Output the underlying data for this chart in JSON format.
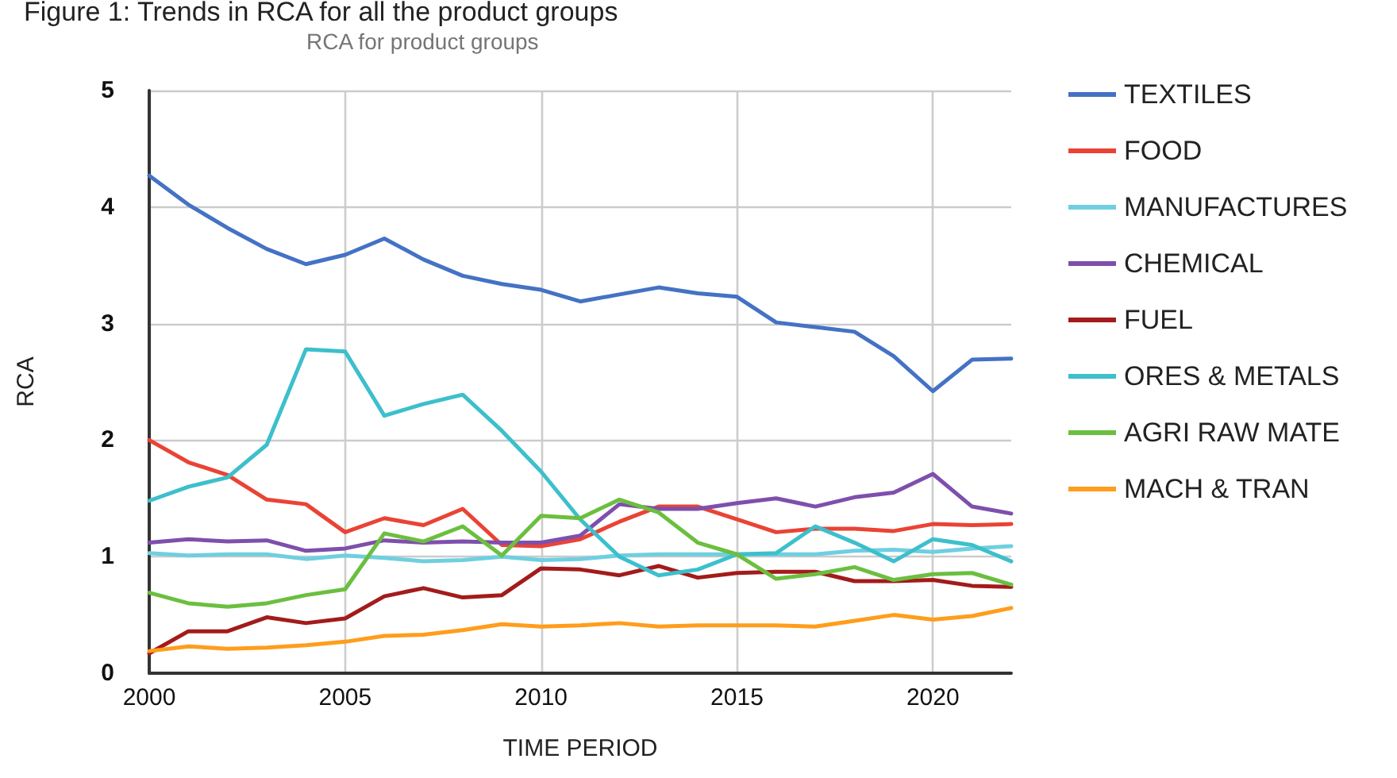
{
  "chart_data": {
    "type": "line",
    "title": "Figure 1: Trends in RCA for all the product groups",
    "subtitle": "RCA for product groups",
    "xlabel": "TIME PERIOD",
    "ylabel": "RCA",
    "x": [
      2000,
      2001,
      2002,
      2003,
      2004,
      2005,
      2006,
      2007,
      2008,
      2009,
      2010,
      2011,
      2012,
      2013,
      2014,
      2015,
      2016,
      2017,
      2018,
      2019,
      2020,
      2021,
      2022
    ],
    "series": [
      {
        "name": "TEXTILES",
        "color": "#4472c4",
        "values": [
          4.27,
          4.02,
          3.82,
          3.64,
          3.51,
          3.59,
          3.73,
          3.55,
          3.41,
          3.34,
          3.29,
          3.19,
          3.25,
          3.31,
          3.26,
          3.23,
          3.01,
          2.97,
          2.93,
          2.72,
          2.42,
          2.69,
          2.7
        ]
      },
      {
        "name": "FOOD",
        "color": "#ea4335",
        "values": [
          2.0,
          1.81,
          1.7,
          1.49,
          1.45,
          1.21,
          1.33,
          1.27,
          1.41,
          1.1,
          1.09,
          1.15,
          1.3,
          1.43,
          1.43,
          1.32,
          1.21,
          1.24,
          1.24,
          1.22,
          1.28,
          1.27,
          1.28
        ]
      },
      {
        "name": "MANUFACTURES",
        "color": "#6fcfe0",
        "values": [
          1.03,
          1.01,
          1.02,
          1.02,
          0.98,
          1.01,
          0.99,
          0.96,
          0.97,
          1.0,
          0.97,
          0.98,
          1.01,
          1.02,
          1.02,
          1.02,
          1.02,
          1.02,
          1.05,
          1.06,
          1.04,
          1.07,
          1.09
        ]
      },
      {
        "name": "CHEMICAL",
        "color": "#7e4fad",
        "values": [
          1.12,
          1.15,
          1.13,
          1.14,
          1.05,
          1.07,
          1.14,
          1.12,
          1.13,
          1.12,
          1.12,
          1.18,
          1.45,
          1.41,
          1.41,
          1.46,
          1.5,
          1.43,
          1.51,
          1.55,
          1.71,
          1.43,
          1.37
        ]
      },
      {
        "name": "FUEL",
        "color": "#a31b1b",
        "values": [
          0.17,
          0.36,
          0.36,
          0.48,
          0.43,
          0.47,
          0.66,
          0.73,
          0.65,
          0.67,
          0.9,
          0.89,
          0.84,
          0.92,
          0.82,
          0.86,
          0.87,
          0.87,
          0.79,
          0.79,
          0.8,
          0.75,
          0.74
        ]
      },
      {
        "name": "ORES & METALS",
        "color": "#3dbfcc",
        "values": [
          1.48,
          1.6,
          1.68,
          1.96,
          2.78,
          2.76,
          2.21,
          2.31,
          2.39,
          2.08,
          1.73,
          1.32,
          1.0,
          0.84,
          0.89,
          1.02,
          1.03,
          1.26,
          1.12,
          0.96,
          1.15,
          1.1,
          0.96
        ]
      },
      {
        "name": "AGRI RAW MATE",
        "color": "#6bbf3f",
        "values": [
          0.69,
          0.6,
          0.57,
          0.6,
          0.67,
          0.72,
          1.2,
          1.13,
          1.26,
          1.01,
          1.35,
          1.33,
          1.49,
          1.38,
          1.12,
          1.02,
          0.81,
          0.85,
          0.91,
          0.8,
          0.85,
          0.86,
          0.76
        ]
      },
      {
        "name": "MACH & TRAN",
        "color": "#ff9d1c",
        "values": [
          0.19,
          0.23,
          0.21,
          0.22,
          0.24,
          0.27,
          0.32,
          0.33,
          0.37,
          0.42,
          0.4,
          0.41,
          0.43,
          0.4,
          0.41,
          0.41,
          0.41,
          0.4,
          0.45,
          0.5,
          0.46,
          0.49,
          0.56
        ]
      }
    ],
    "xlim": [
      2000,
      2022
    ],
    "xticks": [
      2000,
      2005,
      2010,
      2015,
      2020
    ],
    "ylim": [
      0,
      5
    ],
    "yticks": [
      0,
      1,
      2,
      3,
      4,
      5
    ],
    "grid": true,
    "legend": "right",
    "marker": "none",
    "line_style": "solid"
  }
}
